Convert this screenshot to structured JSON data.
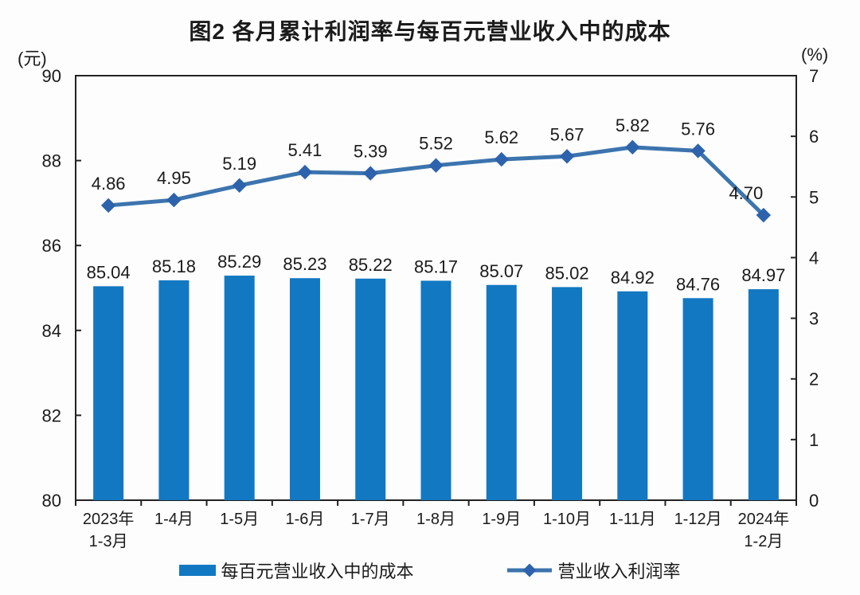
{
  "chart_data": {
    "type": "bar",
    "combo": "bar+line, dual axis",
    "title": "图2 各月累计利润率与每百元营业收入中的成本",
    "categories": [
      "2023年\n1-3月",
      "1-4月",
      "1-5月",
      "1-6月",
      "1-7月",
      "1-8月",
      "1-9月",
      "1-10月",
      "1-11月",
      "1-12月",
      "2024年\n1-2月"
    ],
    "series": [
      {
        "name": "每百元营业收入中的成本",
        "type": "bar",
        "axis": "left",
        "values": [
          85.04,
          85.18,
          85.29,
          85.23,
          85.22,
          85.17,
          85.07,
          85.02,
          84.92,
          84.76,
          84.97
        ],
        "color": "#1278c2"
      },
      {
        "name": "营业收入利润率",
        "type": "line",
        "axis": "right",
        "values": [
          4.86,
          4.95,
          5.19,
          5.41,
          5.39,
          5.52,
          5.62,
          5.67,
          5.82,
          5.76,
          4.7
        ],
        "color": "#3c74ae",
        "marker": "diamond",
        "marker_color": "#2d63ac"
      }
    ],
    "left_axis": {
      "unit": "(元)",
      "min": 80,
      "max": 90,
      "ticks": [
        80,
        82,
        84,
        86,
        88,
        90
      ]
    },
    "right_axis": {
      "unit": "(%)",
      "min": 0,
      "max": 7,
      "ticks": [
        0,
        1,
        2,
        3,
        4,
        5,
        6,
        7
      ]
    },
    "data_labels": true,
    "grid": false,
    "legend_position": "bottom",
    "frame_color": "#222222"
  }
}
